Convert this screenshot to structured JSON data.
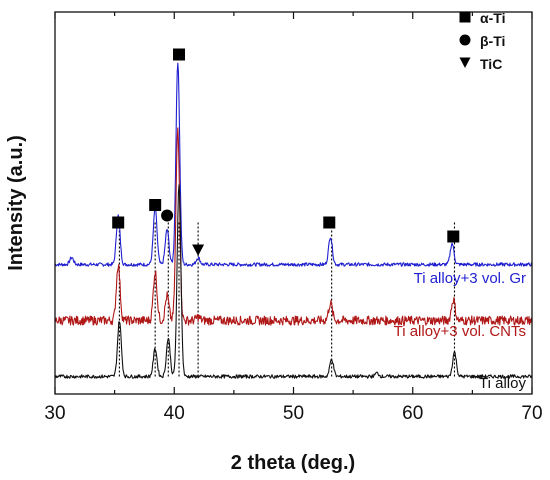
{
  "chart_data": {
    "type": "line",
    "xlabel": "2 theta (deg.)",
    "ylabel": "Intensity (a.u.)",
    "xlim": [
      30,
      70
    ],
    "xticks": [
      30,
      40,
      50,
      60,
      70
    ],
    "ylim": [
      0,
      100
    ],
    "grid": false,
    "legend": {
      "placement": "top-right",
      "entries": [
        {
          "label": "α-Ti",
          "marker": "square"
        },
        {
          "label": "β-Ti",
          "marker": "circle"
        },
        {
          "label": "TiC",
          "marker": "triangle-down"
        }
      ]
    },
    "series": [
      {
        "name": "Ti alloy+3 vol. Gr",
        "color": "#1f1fd0",
        "baseline": 33,
        "peaks": [
          [
            31.4,
            2
          ],
          [
            35.3,
            14
          ],
          [
            38.4,
            16
          ],
          [
            39.4,
            10
          ],
          [
            40.3,
            58
          ],
          [
            42.0,
            2
          ],
          [
            53.1,
            8
          ],
          [
            63.3,
            6
          ]
        ]
      },
      {
        "name": "Ti alloy+3 vol. CNTs",
        "color": "#b01818",
        "baseline": 17,
        "peaks": [
          [
            35.3,
            16
          ],
          [
            38.4,
            14
          ],
          [
            39.4,
            7
          ],
          [
            40.3,
            55
          ],
          [
            42.0,
            1
          ],
          [
            53.1,
            5
          ],
          [
            63.4,
            6
          ]
        ]
      },
      {
        "name": "Ti alloy",
        "color": "#111111",
        "baseline": 1,
        "peaks": [
          [
            35.4,
            16
          ],
          [
            38.4,
            8
          ],
          [
            39.5,
            11
          ],
          [
            40.4,
            55
          ],
          [
            53.2,
            5
          ],
          [
            57.0,
            1
          ],
          [
            63.5,
            7
          ]
        ]
      }
    ],
    "reference_lines": [
      35.4,
      38.4,
      39.5,
      40.4,
      42.0,
      53.2,
      63.5
    ],
    "phase_markers": [
      {
        "phase": "α-Ti",
        "marker": "square",
        "x": 35.3,
        "y": 45
      },
      {
        "phase": "α-Ti",
        "marker": "square",
        "x": 38.4,
        "y": 50
      },
      {
        "phase": "β-Ti",
        "marker": "circle",
        "x": 39.4,
        "y": 47
      },
      {
        "phase": "α-Ti",
        "marker": "square",
        "x": 40.4,
        "y": 93
      },
      {
        "phase": "TiC",
        "marker": "triangle-down",
        "x": 42.0,
        "y": 37
      },
      {
        "phase": "α-Ti",
        "marker": "square",
        "x": 53.0,
        "y": 45
      },
      {
        "phase": "α-Ti",
        "marker": "square",
        "x": 63.4,
        "y": 41
      }
    ]
  }
}
